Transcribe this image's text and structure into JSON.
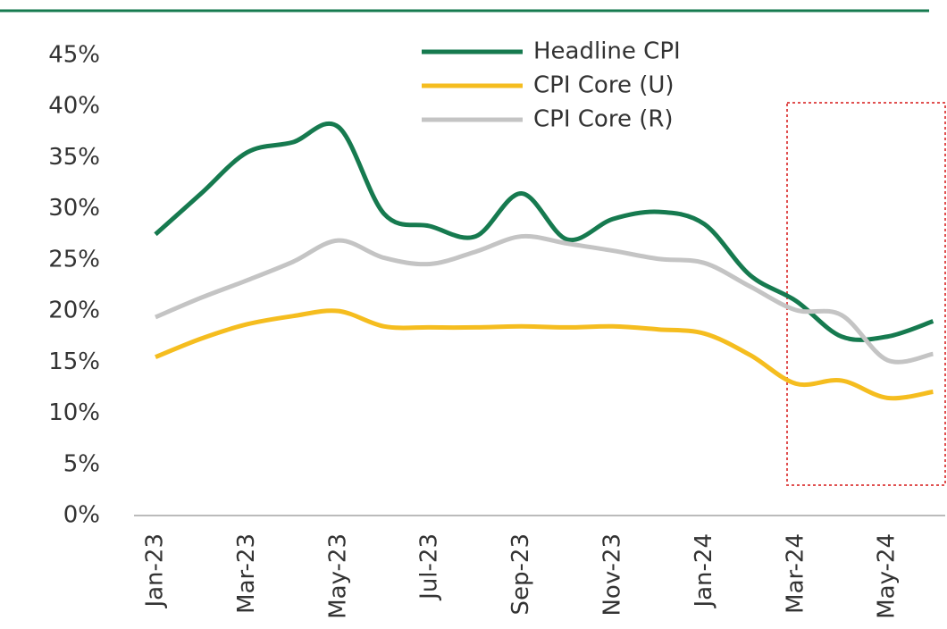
{
  "chart_data": {
    "type": "line",
    "categories": [
      "Jan-23",
      null,
      "Mar-23",
      null,
      "May-23",
      null,
      "Jul-23",
      null,
      "Sep-23",
      null,
      "Nov-23",
      null,
      "Jan-24",
      null,
      "Mar-24",
      null,
      "May-24",
      null
    ],
    "series": [
      {
        "name": "Headline CPI",
        "color": "#167a4f",
        "values": [
          27.5,
          31.5,
          35.5,
          36.5,
          38,
          29.5,
          28.3,
          27.3,
          31.5,
          27,
          29,
          29.7,
          28.5,
          23.5,
          21,
          17.5,
          17.5,
          19
        ]
      },
      {
        "name": "CPI Core (U)",
        "color": "#f5bd1f",
        "values": [
          15.5,
          17.3,
          18.7,
          19.5,
          20,
          18.5,
          18.4,
          18.4,
          18.5,
          18.4,
          18.5,
          18.2,
          17.8,
          15.7,
          12.9,
          13.2,
          11.5,
          12.1
        ]
      },
      {
        "name": "CPI Core (R)",
        "color": "#c4c4c4",
        "values": [
          19.4,
          21.3,
          23,
          24.8,
          26.9,
          25.2,
          24.6,
          25.8,
          27.3,
          26.6,
          25.9,
          25.1,
          24.7,
          22.4,
          20.1,
          19.6,
          15.2,
          15.8
        ]
      }
    ],
    "ylim": [
      0,
      45
    ],
    "yticks": [
      {
        "value": 0,
        "label": "0%"
      },
      {
        "value": 5,
        "label": "5%"
      },
      {
        "value": 10,
        "label": "10%"
      },
      {
        "value": 15,
        "label": "15%"
      },
      {
        "value": 20,
        "label": "20%"
      },
      {
        "value": 25,
        "label": "25%"
      },
      {
        "value": 30,
        "label": "30%"
      },
      {
        "value": 35,
        "label": "35%"
      },
      {
        "value": 40,
        "label": "40%"
      },
      {
        "value": 45,
        "label": "45%"
      }
    ],
    "grid": false
  }
}
